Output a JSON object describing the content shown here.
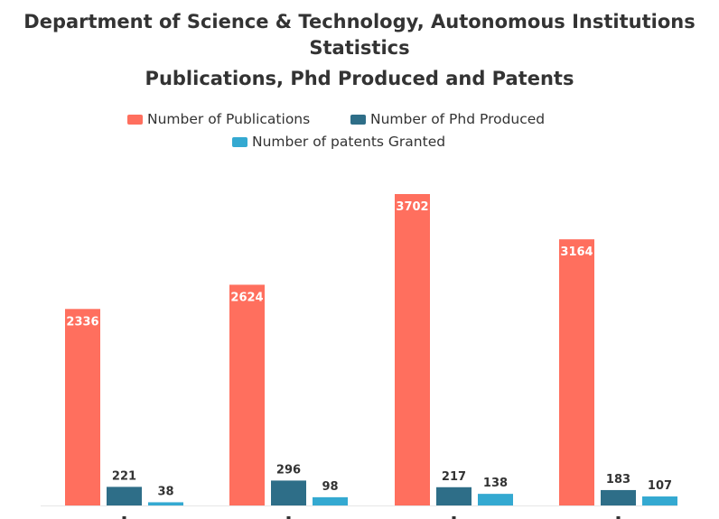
{
  "chart_data": {
    "type": "bar",
    "title": "Department of Science & Technology, Autonomous Institutions Statistics",
    "title_lines": [
      "Department of Science & Technology, Autonomous Institutions",
      "Statistics"
    ],
    "subtitle": "Publications, Phd Produced and Patents",
    "xlabel": "",
    "ylabel": "",
    "ylim": [
      0,
      3800
    ],
    "grid": false,
    "legend_position": "top",
    "categories": [
      "",
      "",
      "",
      ""
    ],
    "series": [
      {
        "name": "Number of Publications",
        "color": "#ff6f5e",
        "values": [
          2336,
          2624,
          3702,
          3164
        ],
        "label_color": "#ffffff"
      },
      {
        "name": "Number of Phd Produced",
        "color": "#2e6e88",
        "values": [
          221,
          296,
          217,
          183
        ],
        "label_color": "#333333"
      },
      {
        "name": "Number of patents Granted",
        "color": "#34a9d1",
        "values": [
          38,
          98,
          138,
          107
        ],
        "label_color": "#333333"
      }
    ]
  }
}
